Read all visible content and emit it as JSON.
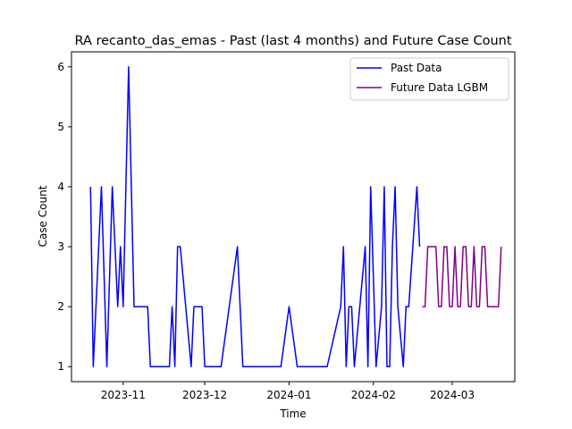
{
  "chart_data": {
    "type": "line",
    "title": "RA recanto_das_emas - Past (last 4 months) and Future Case Count",
    "xlabel": "Time",
    "ylabel": "Case Count",
    "xlim": [
      "2023-10-13",
      "2024-03-24"
    ],
    "ylim": [
      0.75,
      6.25
    ],
    "x_ticks": [
      {
        "date": "2023-11-01",
        "label": "2023-11"
      },
      {
        "date": "2023-12-01",
        "label": "2023-12"
      },
      {
        "date": "2024-01-01",
        "label": "2024-01"
      },
      {
        "date": "2024-02-01",
        "label": "2024-02"
      },
      {
        "date": "2024-03-01",
        "label": "2024-03"
      }
    ],
    "y_ticks": [
      1,
      2,
      3,
      4,
      5,
      6
    ],
    "grid": false,
    "legend_position": "top-right",
    "series": [
      {
        "name": "Past Data",
        "color": "#0000ff",
        "points": [
          [
            "2023-10-20",
            4
          ],
          [
            "2023-10-21",
            1
          ],
          [
            "2023-10-24",
            4
          ],
          [
            "2023-10-26",
            1
          ],
          [
            "2023-10-28",
            4
          ],
          [
            "2023-10-30",
            2
          ],
          [
            "2023-10-31",
            3
          ],
          [
            "2023-11-01",
            2
          ],
          [
            "2023-11-03",
            6
          ],
          [
            "2023-11-05",
            2
          ],
          [
            "2023-11-10",
            2
          ],
          [
            "2023-11-11",
            1
          ],
          [
            "2023-11-18",
            1
          ],
          [
            "2023-11-19",
            2
          ],
          [
            "2023-11-20",
            1
          ],
          [
            "2023-11-21",
            3
          ],
          [
            "2023-11-22",
            3
          ],
          [
            "2023-11-26",
            1
          ],
          [
            "2023-11-27",
            2
          ],
          [
            "2023-11-30",
            2
          ],
          [
            "2023-12-01",
            1
          ],
          [
            "2023-12-07",
            1
          ],
          [
            "2023-12-13",
            3
          ],
          [
            "2023-12-15",
            1
          ],
          [
            "2023-12-29",
            1
          ],
          [
            "2024-01-01",
            2
          ],
          [
            "2024-01-04",
            1
          ],
          [
            "2024-01-15",
            1
          ],
          [
            "2024-01-20",
            2
          ],
          [
            "2024-01-21",
            3
          ],
          [
            "2024-01-22",
            1
          ],
          [
            "2024-01-23",
            2
          ],
          [
            "2024-01-24",
            2
          ],
          [
            "2024-01-25",
            1
          ],
          [
            "2024-01-29",
            3
          ],
          [
            "2024-01-30",
            1
          ],
          [
            "2024-01-31",
            4
          ],
          [
            "2024-02-02",
            1
          ],
          [
            "2024-02-04",
            2
          ],
          [
            "2024-02-05",
            4
          ],
          [
            "2024-02-06",
            1
          ],
          [
            "2024-02-07",
            1
          ],
          [
            "2024-02-08",
            3
          ],
          [
            "2024-02-09",
            4
          ],
          [
            "2024-02-10",
            2
          ],
          [
            "2024-02-12",
            1
          ],
          [
            "2024-02-13",
            2
          ],
          [
            "2024-02-14",
            2
          ],
          [
            "2024-02-17",
            4
          ],
          [
            "2024-02-18",
            3
          ]
        ]
      },
      {
        "name": "Future Data LGBM",
        "color": "#800080",
        "points": [
          [
            "2024-02-19",
            2
          ],
          [
            "2024-02-20",
            2
          ],
          [
            "2024-02-21",
            3
          ],
          [
            "2024-02-22",
            3
          ],
          [
            "2024-02-23",
            3
          ],
          [
            "2024-02-24",
            3
          ],
          [
            "2024-02-25",
            2
          ],
          [
            "2024-02-26",
            2
          ],
          [
            "2024-02-27",
            3
          ],
          [
            "2024-02-28",
            3
          ],
          [
            "2024-02-29",
            2
          ],
          [
            "2024-03-01",
            2
          ],
          [
            "2024-03-02",
            3
          ],
          [
            "2024-03-03",
            2
          ],
          [
            "2024-03-04",
            2
          ],
          [
            "2024-03-05",
            3
          ],
          [
            "2024-03-06",
            3
          ],
          [
            "2024-03-07",
            2
          ],
          [
            "2024-03-08",
            2
          ],
          [
            "2024-03-09",
            3
          ],
          [
            "2024-03-10",
            2
          ],
          [
            "2024-03-11",
            2
          ],
          [
            "2024-03-12",
            3
          ],
          [
            "2024-03-13",
            3
          ],
          [
            "2024-03-14",
            2
          ],
          [
            "2024-03-15",
            2
          ],
          [
            "2024-03-16",
            2
          ],
          [
            "2024-03-17",
            2
          ],
          [
            "2024-03-18",
            2
          ],
          [
            "2024-03-19",
            3
          ]
        ]
      }
    ]
  }
}
